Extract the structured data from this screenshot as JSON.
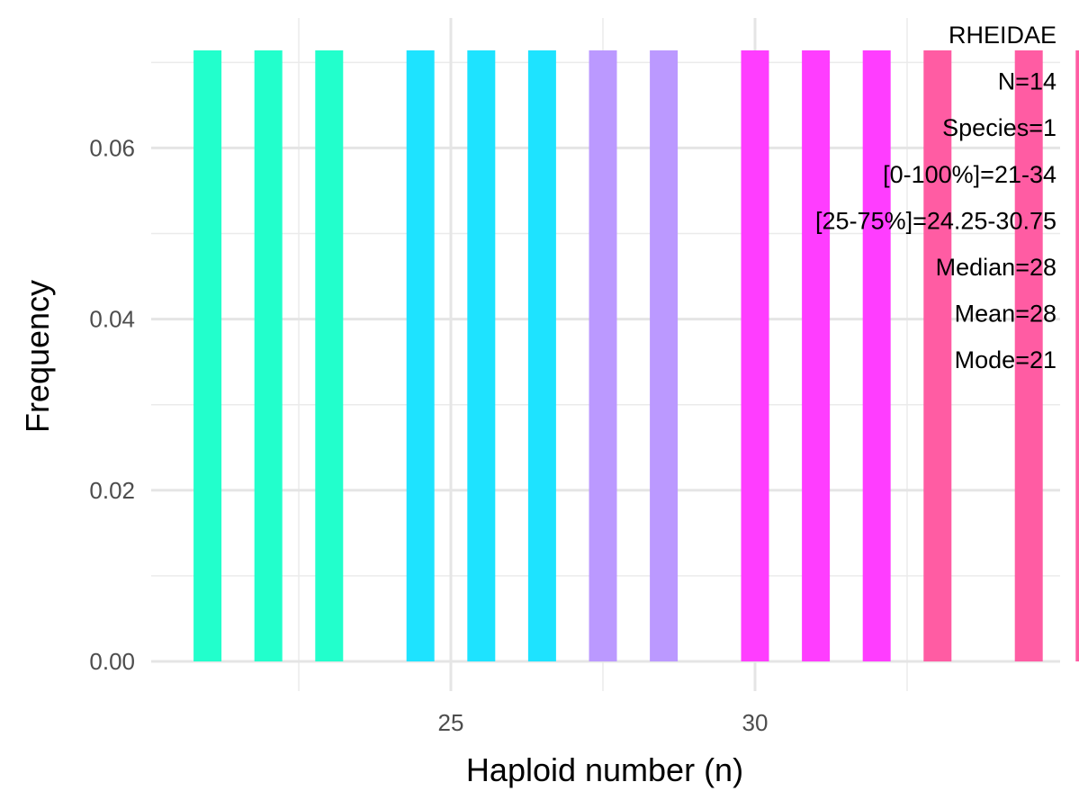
{
  "chart_data": {
    "type": "bar",
    "xlabel": "Haploid number (n)",
    "ylabel": "Frequency",
    "xlim": [
      20.2,
      34.8
    ],
    "ylim": [
      0,
      0.0714
    ],
    "x_ticks": [
      25,
      30
    ],
    "x_tick_labels": [
      "25",
      "30"
    ],
    "y_ticks": [
      0,
      0.02,
      0.04,
      0.06
    ],
    "y_tick_labels": [
      "0.00",
      "0.02",
      "0.04",
      "0.06"
    ],
    "grid": true,
    "legend": "none",
    "bars": [
      {
        "x": 21,
        "value": 0.0714,
        "color": "#22FFCC"
      },
      {
        "x": 22,
        "value": 0.0714,
        "color": "#22FFCC"
      },
      {
        "x": 23,
        "value": 0.0714,
        "color": "#22FFCC"
      },
      {
        "x": 24.5,
        "value": 0.0714,
        "color": "#1EE3FF"
      },
      {
        "x": 25.5,
        "value": 0.0714,
        "color": "#1EE3FF"
      },
      {
        "x": 26.5,
        "value": 0.0714,
        "color": "#1EE3FF"
      },
      {
        "x": 27.5,
        "value": 0.0714,
        "color": "#BB99FF"
      },
      {
        "x": 28.5,
        "value": 0.0714,
        "color": "#BB99FF"
      },
      {
        "x": 30,
        "value": 0.0714,
        "color": "#FF3DFF"
      },
      {
        "x": 31,
        "value": 0.0714,
        "color": "#FF3DFF"
      },
      {
        "x": 32,
        "value": 0.0714,
        "color": "#FF3DFF"
      },
      {
        "x": 33,
        "value": 0.0714,
        "color": "#FF5CA3"
      },
      {
        "x": 34.5,
        "value": 0.0714,
        "color": "#FF5CA3"
      },
      {
        "x": 35.5,
        "value": 0.0714,
        "color": "#FF5CA3"
      }
    ],
    "annotations": [
      "RHEIDAE",
      "N=14",
      "Species=1",
      "[0-100%]=21-34",
      "[25-75%]=24.25-30.75",
      "Median=28",
      "Mean=28",
      "Mode=21"
    ]
  }
}
